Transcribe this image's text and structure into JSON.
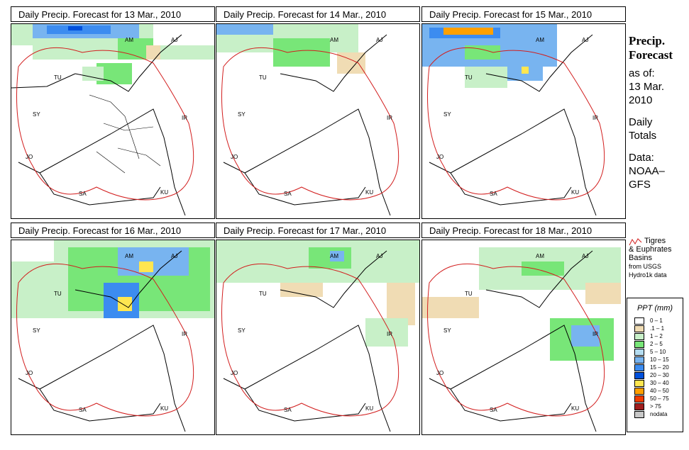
{
  "panels": [
    {
      "title": "Daily Precip. Forecast for  13 Mar., 2010"
    },
    {
      "title": "Daily Precip. Forecast for  14 Mar., 2010"
    },
    {
      "title": "Daily Precip. Forecast for  15 Mar., 2010"
    },
    {
      "title": "Daily Precip. Forecast for  16 Mar., 2010"
    },
    {
      "title": "Daily Precip. Forecast for  17 Mar., 2010"
    },
    {
      "title": "Daily Precip. Forecast for  18 Mar., 2010"
    }
  ],
  "country_labels": {
    "AM": "AM",
    "AJ": "AJ",
    "TU": "TU",
    "SY": "SY",
    "IR": "IR",
    "JO": "JO",
    "SA": "SA",
    "KU": "KU"
  },
  "side": {
    "title1": "Precip.",
    "title2": "Forecast",
    "asof": "as of:",
    "date1": "13 Mar.",
    "date2": "2010",
    "daily1": "Daily",
    "daily2": "Totals",
    "data1": "Data:",
    "data2": "NOAA–",
    "data3": "GFS"
  },
  "basin_legend": {
    "line1": "Tigres",
    "line2": "& Euphrates",
    "line3": "Basins",
    "line4": "from USGS",
    "line5": "Hydro1k data"
  },
  "ppt_legend": {
    "title": "PPT (mm)",
    "items": [
      {
        "label": "0 – 1",
        "color": "#ffffff"
      },
      {
        "label": ".1 – 1",
        "color": "#f0dcb4"
      },
      {
        "label": "1 – 2",
        "color": "#c8f0c8"
      },
      {
        "label": "2 – 5",
        "color": "#78e678"
      },
      {
        "label": "5 – 10",
        "color": "#b4dcf0"
      },
      {
        "label": "10 – 15",
        "color": "#78b4f0"
      },
      {
        "label": "15 – 20",
        "color": "#3c8cf0"
      },
      {
        "label": "20 – 30",
        "color": "#0050dc"
      },
      {
        "label": "30 – 40",
        "color": "#ffe650"
      },
      {
        "label": "40 – 50",
        "color": "#ffa000"
      },
      {
        "label": "50 – 75",
        "color": "#f03c00"
      },
      {
        "label": "> 75",
        "color": "#a01e1e"
      },
      {
        "label": "nodata",
        "color": "#c8c8c8"
      }
    ]
  }
}
